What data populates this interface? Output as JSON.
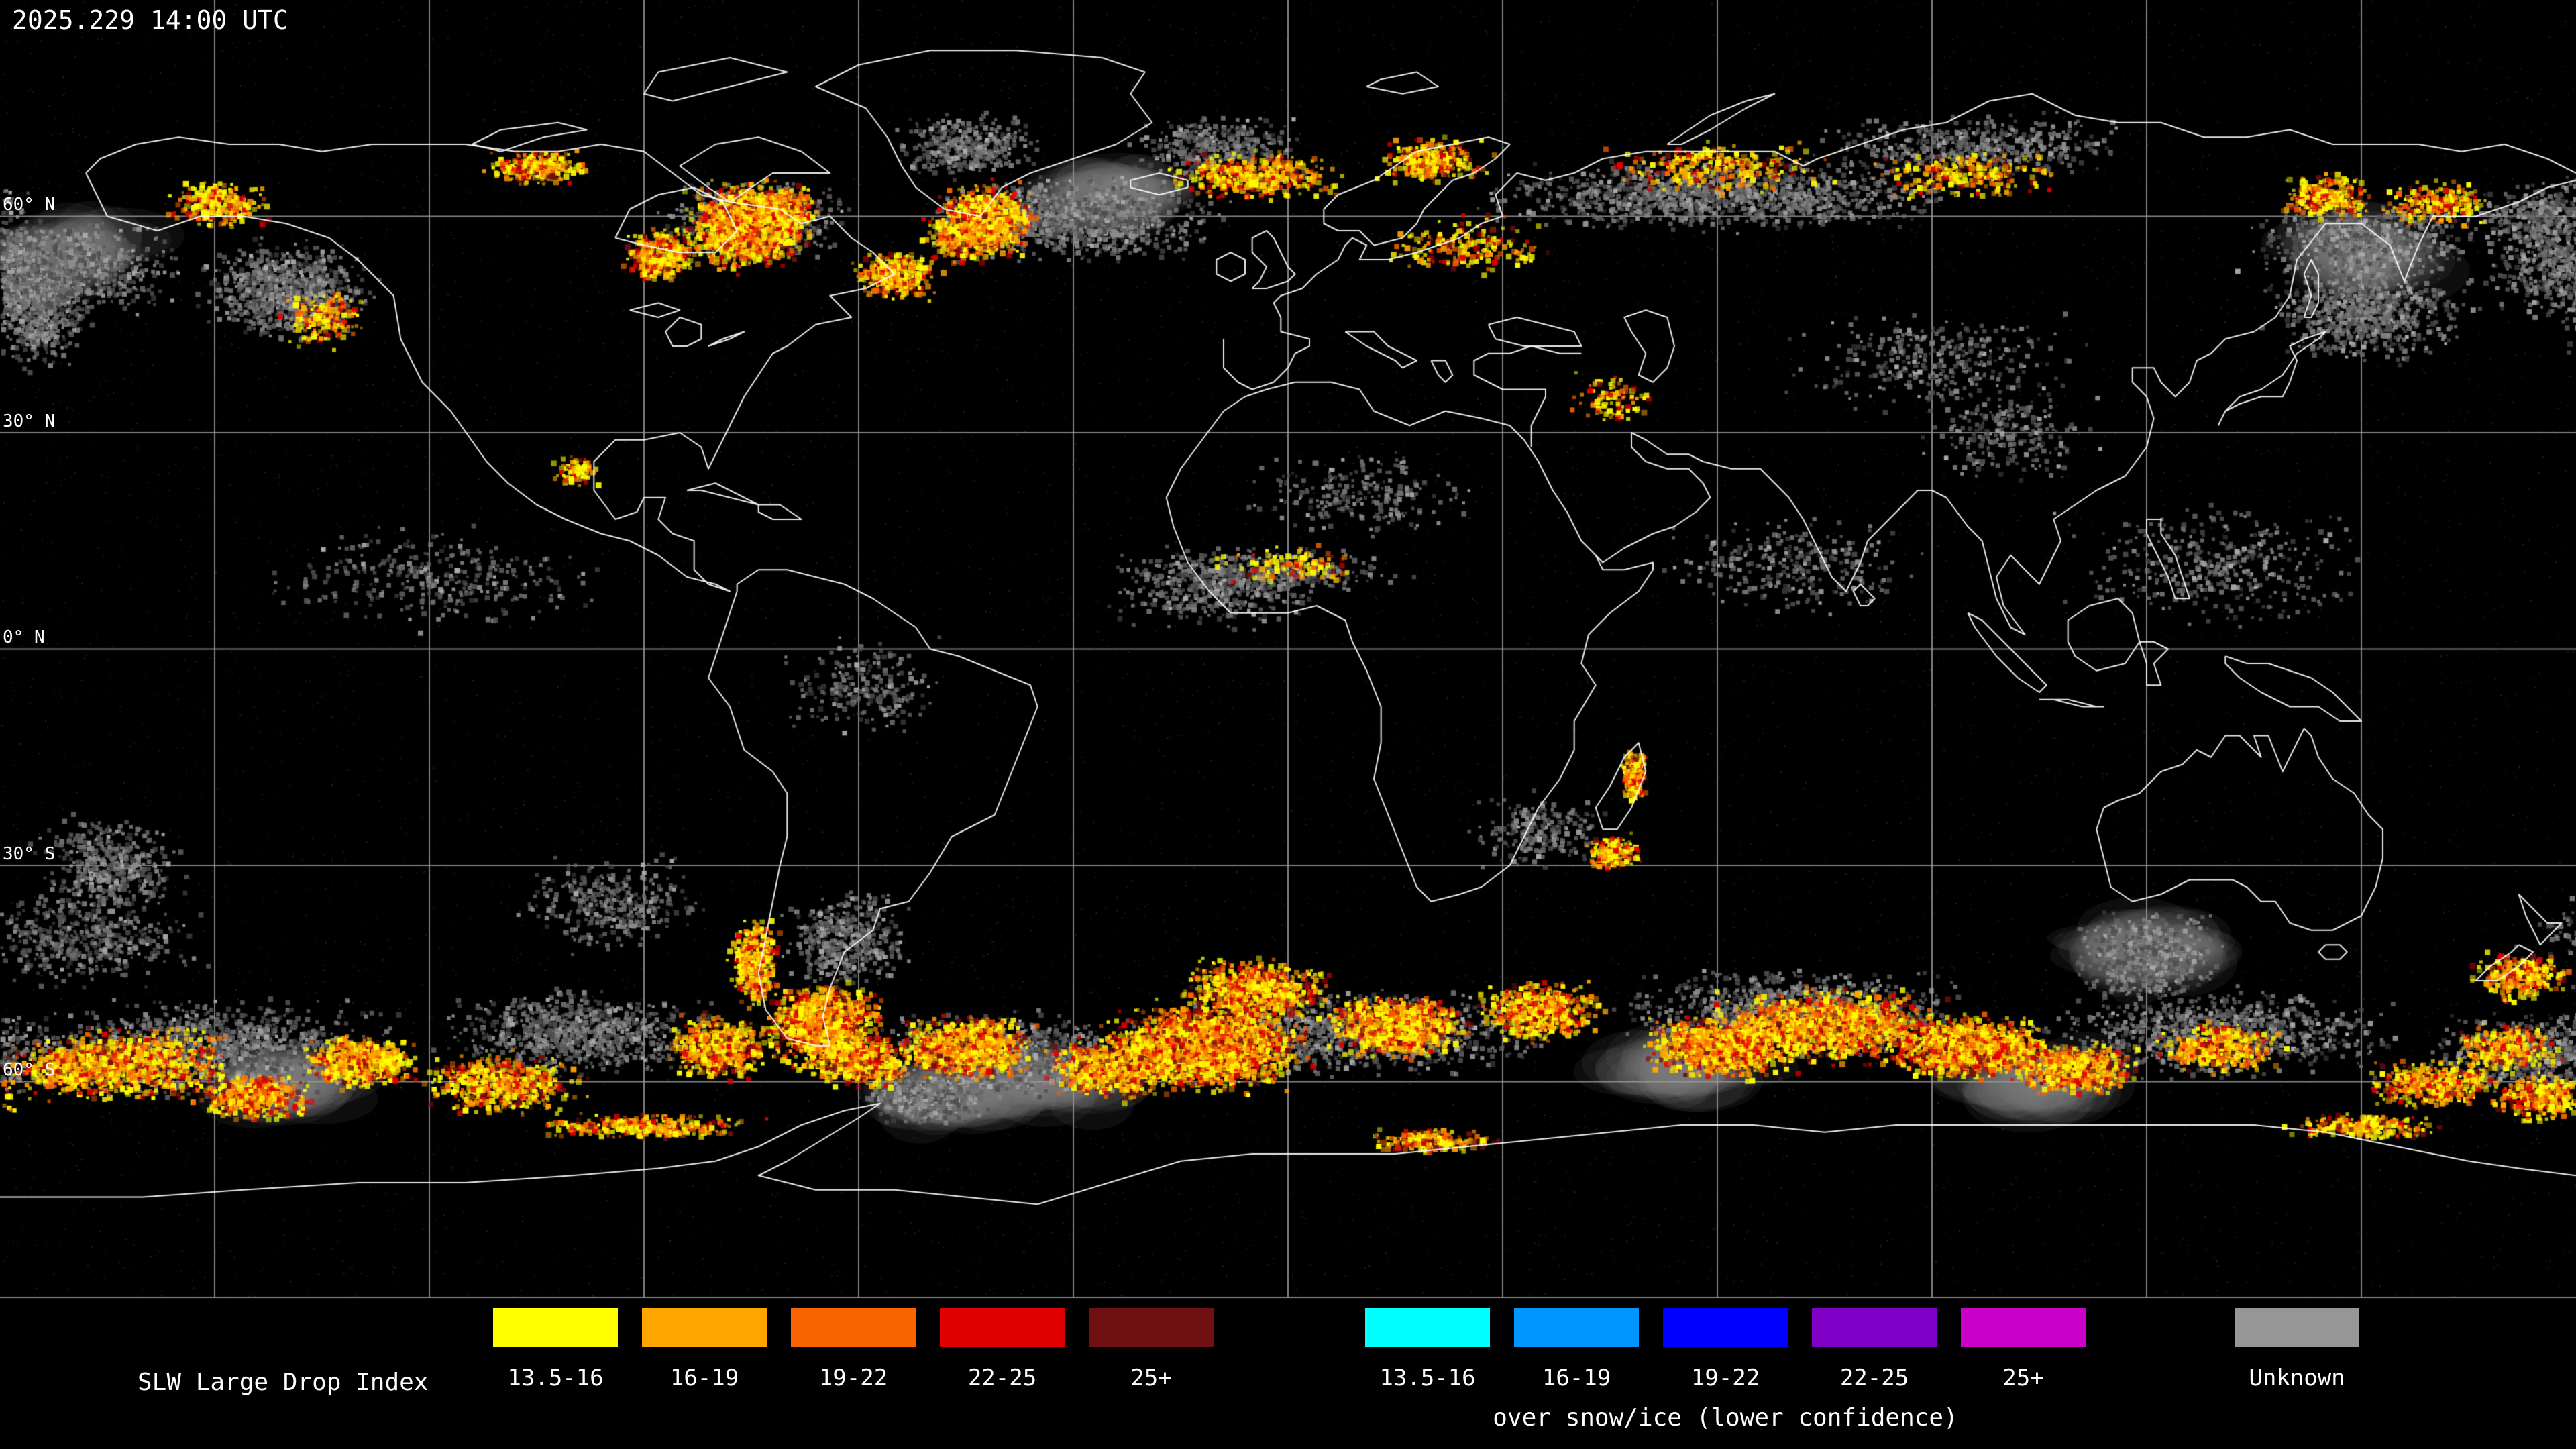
{
  "header": {
    "timestamp": "2025.229 14:00 UTC"
  },
  "map": {
    "lat_labels": [
      "60° N",
      "30° N",
      "0° N",
      "30° S",
      "60° S"
    ]
  },
  "legend": {
    "title": "SLW Large Drop Index",
    "groups": [
      {
        "name": "standard",
        "items": [
          {
            "label": "13.5-16",
            "color": "#ffff00"
          },
          {
            "label": "16-19",
            "color": "#ffa500"
          },
          {
            "label": "19-22",
            "color": "#fa6400"
          },
          {
            "label": "22-25",
            "color": "#e00000"
          },
          {
            "label": "25+",
            "color": "#701010"
          }
        ]
      },
      {
        "name": "snow-ice",
        "caption": "over snow/ice (lower confidence)",
        "items": [
          {
            "label": "13.5-16",
            "color": "#00ffff"
          },
          {
            "label": "16-19",
            "color": "#0096ff"
          },
          {
            "label": "19-22",
            "color": "#0000ff"
          },
          {
            "label": "22-25",
            "color": "#8000c8"
          },
          {
            "label": "25+",
            "color": "#c800c8"
          }
        ]
      }
    ],
    "unknown": {
      "label": "Unknown",
      "color": "#969696"
    }
  },
  "map_style": {
    "background": "#000000",
    "coastline": "#ffffff",
    "grid": "#9a9a9a",
    "label_color": "#ffffff"
  }
}
